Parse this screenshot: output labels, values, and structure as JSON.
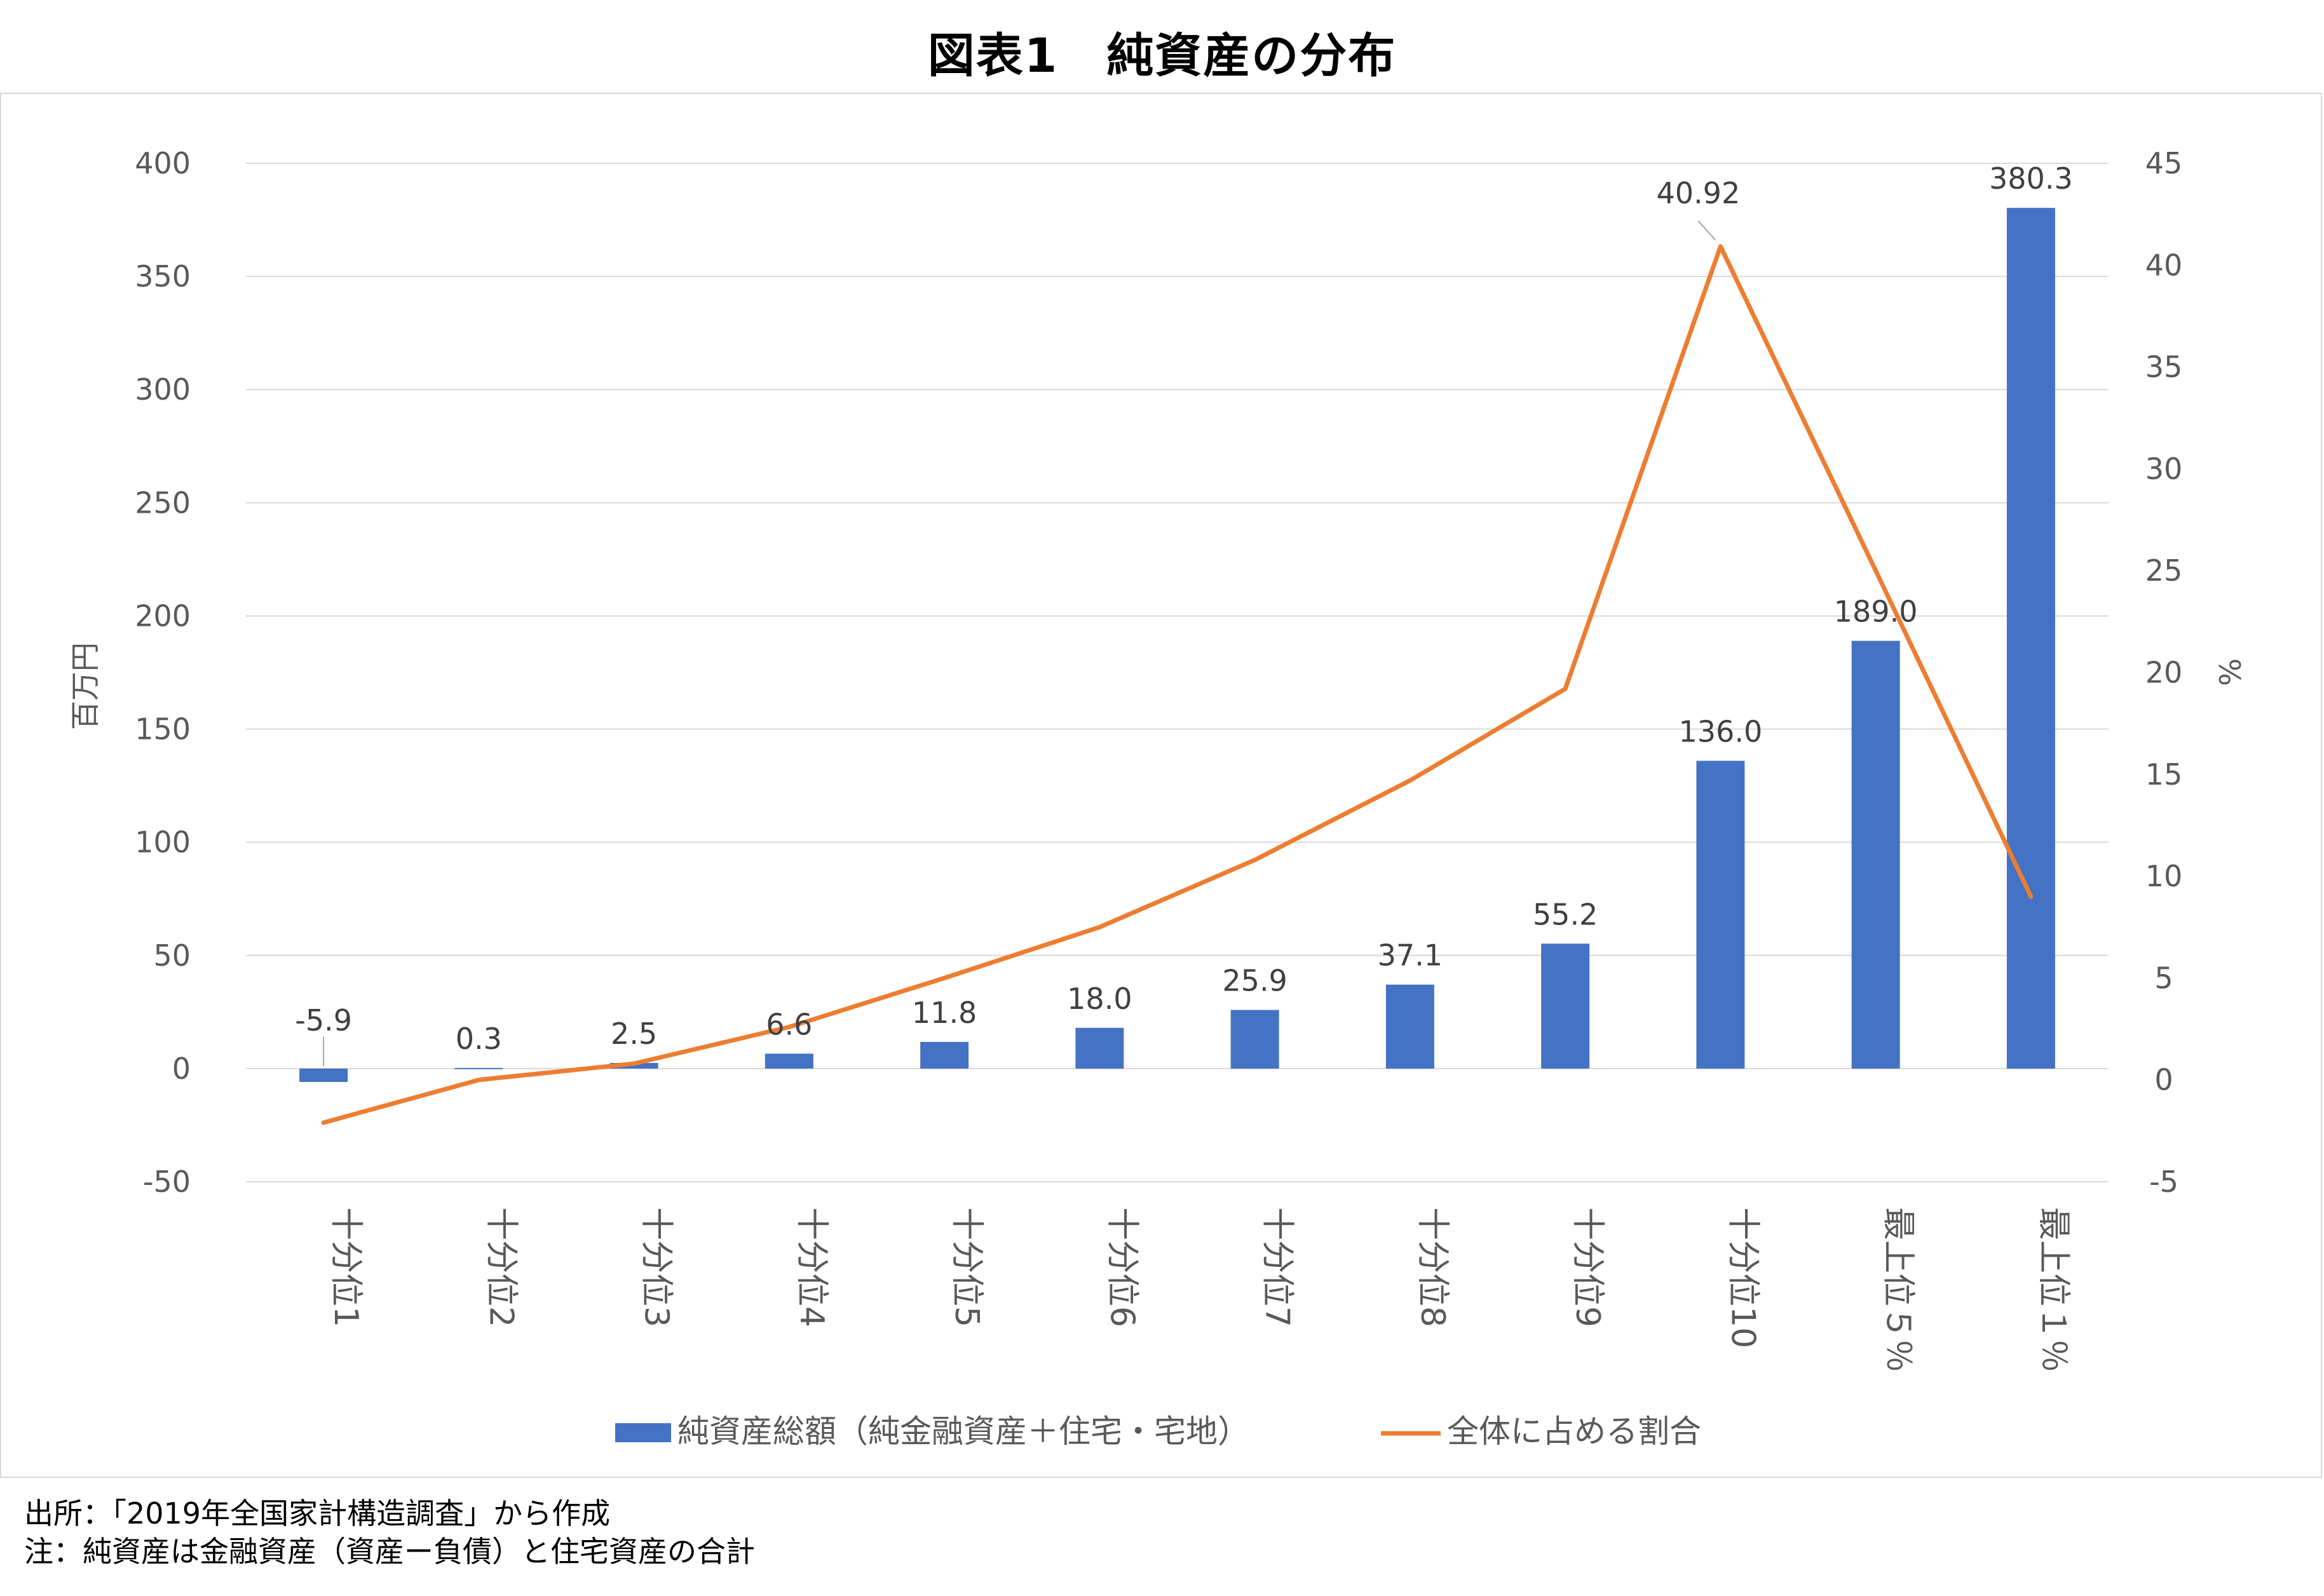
{
  "title": "図表1　純資産の分布",
  "chart_data": {
    "type": "bar",
    "categories": [
      "十分位1",
      "十分位2",
      "十分位3",
      "十分位4",
      "十分位5",
      "十分位6",
      "十分位7",
      "十分位8",
      "十分位9",
      "十分位10",
      "最上位５％",
      "最上位１％"
    ],
    "series": [
      {
        "name": "純資産総額（純金融資産＋住宅・宅地）",
        "type": "bar",
        "axis": "left",
        "color": "#4472C4",
        "values": [
          -5.9,
          0.3,
          2.5,
          6.6,
          11.8,
          18.0,
          25.9,
          37.1,
          55.2,
          136.0,
          189.0,
          380.3
        ],
        "data_labels": [
          "-5.9",
          "0.3",
          "2.5",
          "6.6",
          "11.8",
          "18.0",
          "25.9",
          "37.1",
          "55.2",
          "136.0",
          "189.0",
          "380.3"
        ]
      },
      {
        "name": "全体に占める割合",
        "type": "line",
        "axis": "right",
        "color": "#ED7D31",
        "values": [
          -2.1,
          0.0,
          0.8,
          2.6,
          5.0,
          7.5,
          10.8,
          14.7,
          19.2,
          40.92,
          25.0,
          9.0
        ],
        "data_labels": [
          "",
          "",
          "",
          "",
          "",
          "",
          "",
          "",
          "",
          "40.92",
          "",
          ""
        ]
      }
    ],
    "ylabel": "百万円",
    "y2label": "%",
    "ylim": [
      -50,
      400
    ],
    "yticks": [
      "400",
      "350",
      "300",
      "250",
      "200",
      "150",
      "100",
      "50",
      "0",
      "-50"
    ],
    "y2lim": [
      -5,
      45
    ],
    "y2ticks": [
      "45",
      "40",
      "35",
      "30",
      "25",
      "20",
      "15",
      "10",
      "5",
      "0",
      "-5"
    ],
    "grid": true,
    "legend_position": "bottom"
  },
  "notes": {
    "source": "出所：「2019年全国家計構造調査」から作成",
    "note": "注：純資産は金融資産（資産ー負債）と住宅資産の合計"
  }
}
